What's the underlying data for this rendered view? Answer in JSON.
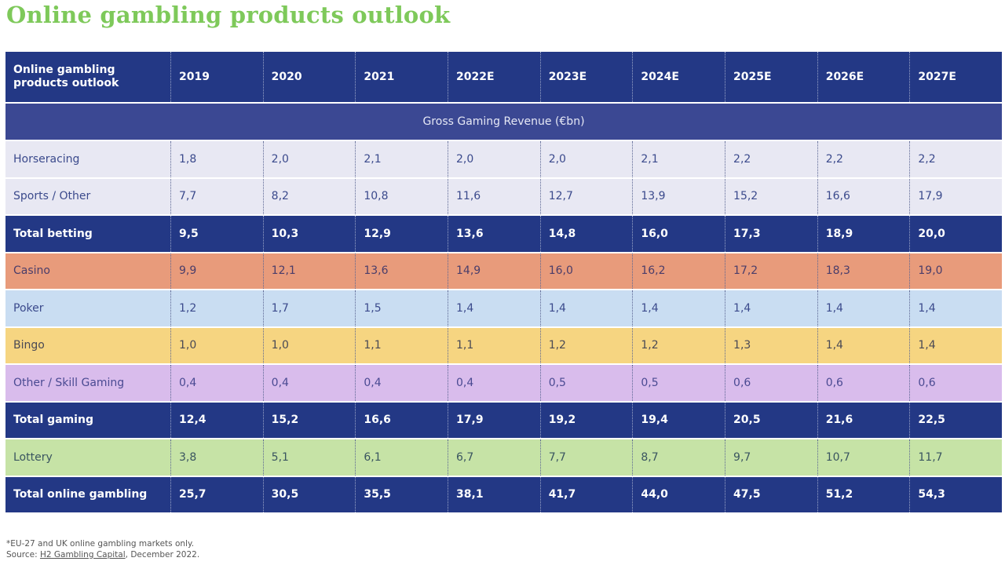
{
  "page": {
    "title": "Online gambling products outlook"
  },
  "chart_data": {
    "type": "table",
    "title": "Online gambling products outlook",
    "header_label": "Online gambling products outlook",
    "unit_band": "Gross Gaming Revenue (€bn)",
    "columns": [
      "2019",
      "2020",
      "2021",
      "2022E",
      "2023E",
      "2024E",
      "2025E",
      "2026E",
      "2027E"
    ],
    "rows": [
      {
        "label": "Horseracing",
        "style": "light",
        "bg": "#e8e8f3",
        "fg": "#3b4a8c",
        "values": [
          "1,8",
          "2,0",
          "2,1",
          "2,0",
          "2,0",
          "2,1",
          "2,2",
          "2,2",
          "2,2"
        ]
      },
      {
        "label": "Sports / Other",
        "style": "light",
        "bg": "#e8e8f3",
        "fg": "#3b4a8c",
        "values": [
          "7,7",
          "8,2",
          "10,8",
          "11,6",
          "12,7",
          "13,9",
          "15,2",
          "16,6",
          "17,9"
        ]
      },
      {
        "label": "Total betting",
        "style": "total",
        "bg": "#233885",
        "fg": "#ffffff",
        "values": [
          "9,5",
          "10,3",
          "12,9",
          "13,6",
          "14,8",
          "16,0",
          "17,3",
          "18,9",
          "20,0"
        ]
      },
      {
        "label": "Casino",
        "style": "light",
        "bg": "#e89b7b",
        "fg": "#4a3d6a",
        "values": [
          "9,9",
          "12,1",
          "13,6",
          "14,9",
          "16,0",
          "16,2",
          "17,2",
          "18,3",
          "19,0"
        ]
      },
      {
        "label": "Poker",
        "style": "light",
        "bg": "#c9ddf2",
        "fg": "#3b4a8c",
        "values": [
          "1,2",
          "1,7",
          "1,5",
          "1,4",
          "1,4",
          "1,4",
          "1,4",
          "1,4",
          "1,4"
        ]
      },
      {
        "label": "Bingo",
        "style": "light",
        "bg": "#f6d581",
        "fg": "#4a4a55",
        "values": [
          "1,0",
          "1,0",
          "1,1",
          "1,1",
          "1,2",
          "1,2",
          "1,3",
          "1,4",
          "1,4"
        ]
      },
      {
        "label": "Other / Skill Gaming",
        "style": "light",
        "bg": "#d9bcec",
        "fg": "#4a4a92",
        "values": [
          "0,4",
          "0,4",
          "0,4",
          "0,4",
          "0,5",
          "0,5",
          "0,6",
          "0,6",
          "0,6"
        ]
      },
      {
        "label": "Total gaming",
        "style": "total",
        "bg": "#233885",
        "fg": "#ffffff",
        "values": [
          "12,4",
          "15,2",
          "16,6",
          "17,9",
          "19,2",
          "19,4",
          "20,5",
          "21,6",
          "22,5"
        ]
      },
      {
        "label": "Lottery",
        "style": "light",
        "bg": "#c6e3a6",
        "fg": "#3a5560",
        "values": [
          "3,8",
          "5,1",
          "6,1",
          "6,7",
          "7,7",
          "8,7",
          "9,7",
          "10,7",
          "11,7"
        ]
      },
      {
        "label": "Total online gambling",
        "style": "total",
        "bg": "#233885",
        "fg": "#ffffff",
        "values": [
          "25,7",
          "30,5",
          "35,5",
          "38,1",
          "41,7",
          "44,0",
          "47,5",
          "51,2",
          "54,3"
        ]
      }
    ]
  },
  "footnote": {
    "line1": "*EU-27 and UK online gambling markets only.",
    "source_prefix": "Source: ",
    "source_link": "H2 Gambling Capital",
    "source_suffix": ", December 2022."
  }
}
